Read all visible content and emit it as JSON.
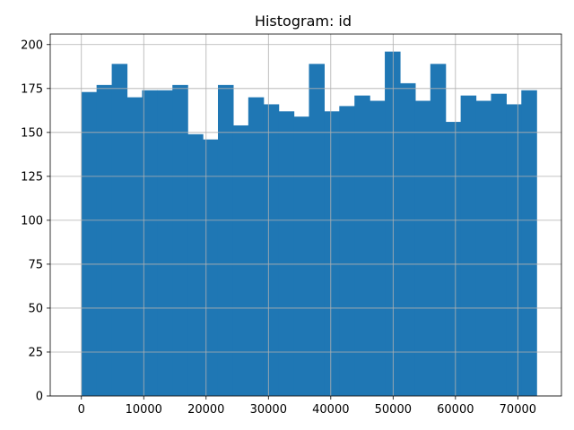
{
  "chart_data": {
    "type": "bar",
    "title": "Histogram: id",
    "xlabel": "",
    "ylabel": "",
    "xlim": [
      -5000,
      77000
    ],
    "ylim": [
      0,
      206
    ],
    "grid": true,
    "bar_color": "#1f77b4",
    "grid_color": "#b0b0b0",
    "bin_start": 0,
    "bin_width": 2433.33,
    "values": [
      173,
      177,
      189,
      170,
      174,
      174,
      177,
      149,
      146,
      177,
      154,
      170,
      166,
      162,
      159,
      189,
      162,
      165,
      171,
      168,
      196,
      178,
      168,
      189,
      156,
      171,
      168,
      172,
      166,
      174
    ],
    "x_ticks": [
      0,
      10000,
      20000,
      30000,
      40000,
      50000,
      60000,
      70000
    ],
    "x_tick_labels": [
      "0",
      "10000",
      "20000",
      "30000",
      "40000",
      "50000",
      "60000",
      "70000"
    ],
    "y_ticks": [
      0,
      25,
      50,
      75,
      100,
      125,
      150,
      175,
      200
    ],
    "y_tick_labels": [
      "0",
      "25",
      "50",
      "75",
      "100",
      "125",
      "150",
      "175",
      "200"
    ]
  }
}
